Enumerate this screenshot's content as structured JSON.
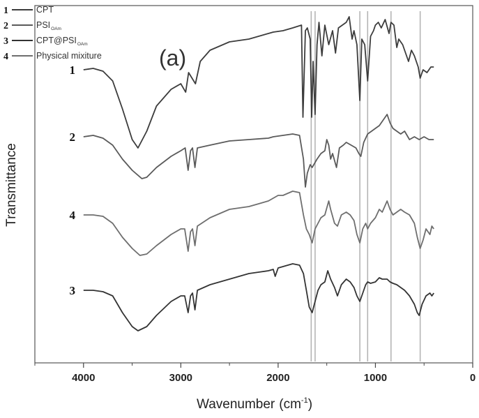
{
  "chart_data": {
    "type": "line",
    "panel_label": "(a)",
    "xlabel": "Wavenumber",
    "xlabel_unit": "(cm",
    "xlabel_unit_exp": "-1",
    "xlabel_unit_close": ")",
    "ylabel": "Transmittance",
    "xlim": [
      4500,
      0
    ],
    "x_reversed": true,
    "x_ticks": [
      4000,
      3000,
      2000,
      1000,
      0
    ],
    "x_tick_labels": [
      "4000",
      "3000",
      "2000",
      "1000",
      "0"
    ],
    "y_axis_values_shown": false,
    "grid": false,
    "legend_position": "top-left",
    "legend": [
      {
        "number": "1",
        "label": "CPT",
        "sub": "",
        "suffix": ""
      },
      {
        "number": "2",
        "label": "PSI",
        "sub": "OAm",
        "suffix": ""
      },
      {
        "number": "3",
        "label": "CPT@PSI",
        "sub": "OAm",
        "suffix": ""
      },
      {
        "number": "4",
        "label": "Physical mixiture",
        "sub": "",
        "suffix": ""
      }
    ],
    "vertical_reference_lines": [
      1660,
      1620,
      1160,
      1080,
      840,
      540
    ],
    "series": [
      {
        "curve_label": "1",
        "color": "#3c3c3c",
        "points": [
          [
            4000,
            0.77
          ],
          [
            3900,
            0.775
          ],
          [
            3800,
            0.765
          ],
          [
            3700,
            0.73
          ],
          [
            3600,
            0.63
          ],
          [
            3500,
            0.52
          ],
          [
            3440,
            0.49
          ],
          [
            3350,
            0.55
          ],
          [
            3250,
            0.64
          ],
          [
            3100,
            0.7
          ],
          [
            3000,
            0.72
          ],
          [
            2950,
            0.69
          ],
          [
            2920,
            0.76
          ],
          [
            2850,
            0.72
          ],
          [
            2800,
            0.8
          ],
          [
            2700,
            0.84
          ],
          [
            2500,
            0.87
          ],
          [
            2300,
            0.88
          ],
          [
            2100,
            0.9
          ],
          [
            2050,
            0.905
          ],
          [
            1950,
            0.91
          ],
          [
            1850,
            0.92
          ],
          [
            1760,
            0.93
          ],
          [
            1745,
            0.6
          ],
          [
            1720,
            0.91
          ],
          [
            1700,
            0.92
          ],
          [
            1670,
            0.88
          ],
          [
            1655,
            0.6
          ],
          [
            1640,
            0.8
          ],
          [
            1620,
            0.61
          ],
          [
            1600,
            0.86
          ],
          [
            1580,
            0.94
          ],
          [
            1550,
            0.82
          ],
          [
            1520,
            0.93
          ],
          [
            1480,
            0.86
          ],
          [
            1440,
            0.91
          ],
          [
            1410,
            0.83
          ],
          [
            1380,
            0.92
          ],
          [
            1340,
            0.93
          ],
          [
            1300,
            0.94
          ],
          [
            1270,
            0.96
          ],
          [
            1240,
            0.88
          ],
          [
            1220,
            0.91
          ],
          [
            1190,
            0.86
          ],
          [
            1160,
            0.66
          ],
          [
            1140,
            0.88
          ],
          [
            1110,
            0.86
          ],
          [
            1080,
            0.73
          ],
          [
            1050,
            0.89
          ],
          [
            1020,
            0.91
          ],
          [
            1000,
            0.93
          ],
          [
            970,
            0.94
          ],
          [
            940,
            0.92
          ],
          [
            900,
            0.95
          ],
          [
            860,
            0.9
          ],
          [
            840,
            0.94
          ],
          [
            810,
            0.93
          ],
          [
            780,
            0.85
          ],
          [
            760,
            0.88
          ],
          [
            720,
            0.86
          ],
          [
            690,
            0.83
          ],
          [
            660,
            0.8
          ],
          [
            630,
            0.84
          ],
          [
            600,
            0.82
          ],
          [
            560,
            0.78
          ],
          [
            540,
            0.74
          ],
          [
            510,
            0.77
          ],
          [
            470,
            0.76
          ],
          [
            430,
            0.78
          ],
          [
            400,
            0.78
          ]
        ]
      },
      {
        "curve_label": "2",
        "color": "#5a5a5a",
        "points": [
          [
            4000,
            0.53
          ],
          [
            3900,
            0.535
          ],
          [
            3800,
            0.525
          ],
          [
            3700,
            0.5
          ],
          [
            3600,
            0.45
          ],
          [
            3500,
            0.41
          ],
          [
            3400,
            0.38
          ],
          [
            3350,
            0.385
          ],
          [
            3250,
            0.42
          ],
          [
            3100,
            0.46
          ],
          [
            3000,
            0.48
          ],
          [
            2955,
            0.49
          ],
          [
            2925,
            0.41
          ],
          [
            2900,
            0.48
          ],
          [
            2880,
            0.49
          ],
          [
            2855,
            0.42
          ],
          [
            2830,
            0.49
          ],
          [
            2700,
            0.5
          ],
          [
            2500,
            0.515
          ],
          [
            2300,
            0.52
          ],
          [
            2100,
            0.525
          ],
          [
            2050,
            0.53
          ],
          [
            1950,
            0.535
          ],
          [
            1850,
            0.54
          ],
          [
            1780,
            0.535
          ],
          [
            1740,
            0.45
          ],
          [
            1720,
            0.35
          ],
          [
            1700,
            0.4
          ],
          [
            1670,
            0.43
          ],
          [
            1650,
            0.42
          ],
          [
            1600,
            0.45
          ],
          [
            1560,
            0.47
          ],
          [
            1520,
            0.48
          ],
          [
            1500,
            0.52
          ],
          [
            1480,
            0.5
          ],
          [
            1460,
            0.45
          ],
          [
            1440,
            0.47
          ],
          [
            1400,
            0.42
          ],
          [
            1370,
            0.49
          ],
          [
            1330,
            0.5
          ],
          [
            1300,
            0.51
          ],
          [
            1250,
            0.5
          ],
          [
            1200,
            0.49
          ],
          [
            1170,
            0.47
          ],
          [
            1150,
            0.46
          ],
          [
            1120,
            0.51
          ],
          [
            1080,
            0.54
          ],
          [
            1040,
            0.55
          ],
          [
            1000,
            0.56
          ],
          [
            960,
            0.57
          ],
          [
            920,
            0.59
          ],
          [
            880,
            0.61
          ],
          [
            850,
            0.58
          ],
          [
            820,
            0.56
          ],
          [
            780,
            0.55
          ],
          [
            740,
            0.54
          ],
          [
            700,
            0.55
          ],
          [
            650,
            0.52
          ],
          [
            600,
            0.53
          ],
          [
            550,
            0.52
          ],
          [
            500,
            0.53
          ],
          [
            450,
            0.52
          ],
          [
            400,
            0.52
          ]
        ]
      },
      {
        "curve_label": "4",
        "color": "#6e6e6e",
        "points": [
          [
            4000,
            0.25
          ],
          [
            3900,
            0.25
          ],
          [
            3800,
            0.245
          ],
          [
            3700,
            0.22
          ],
          [
            3600,
            0.17
          ],
          [
            3500,
            0.13
          ],
          [
            3420,
            0.105
          ],
          [
            3350,
            0.11
          ],
          [
            3250,
            0.14
          ],
          [
            3100,
            0.18
          ],
          [
            3000,
            0.2
          ],
          [
            2960,
            0.2
          ],
          [
            2925,
            0.12
          ],
          [
            2900,
            0.19
          ],
          [
            2880,
            0.2
          ],
          [
            2855,
            0.14
          ],
          [
            2830,
            0.21
          ],
          [
            2700,
            0.24
          ],
          [
            2500,
            0.27
          ],
          [
            2300,
            0.28
          ],
          [
            2200,
            0.29
          ],
          [
            2100,
            0.3
          ],
          [
            2050,
            0.31
          ],
          [
            2000,
            0.32
          ],
          [
            1950,
            0.32
          ],
          [
            1850,
            0.335
          ],
          [
            1780,
            0.33
          ],
          [
            1740,
            0.25
          ],
          [
            1710,
            0.2
          ],
          [
            1680,
            0.18
          ],
          [
            1650,
            0.15
          ],
          [
            1620,
            0.2
          ],
          [
            1590,
            0.22
          ],
          [
            1560,
            0.24
          ],
          [
            1520,
            0.25
          ],
          [
            1480,
            0.3
          ],
          [
            1460,
            0.27
          ],
          [
            1420,
            0.22
          ],
          [
            1390,
            0.21
          ],
          [
            1350,
            0.25
          ],
          [
            1300,
            0.26
          ],
          [
            1260,
            0.25
          ],
          [
            1220,
            0.23
          ],
          [
            1190,
            0.18
          ],
          [
            1160,
            0.15
          ],
          [
            1130,
            0.2
          ],
          [
            1100,
            0.22
          ],
          [
            1080,
            0.2
          ],
          [
            1050,
            0.22
          ],
          [
            1000,
            0.24
          ],
          [
            960,
            0.27
          ],
          [
            930,
            0.26
          ],
          [
            880,
            0.3
          ],
          [
            850,
            0.27
          ],
          [
            820,
            0.25
          ],
          [
            780,
            0.26
          ],
          [
            740,
            0.27
          ],
          [
            700,
            0.26
          ],
          [
            650,
            0.25
          ],
          [
            600,
            0.22
          ],
          [
            570,
            0.17
          ],
          [
            540,
            0.13
          ],
          [
            510,
            0.16
          ],
          [
            480,
            0.2
          ],
          [
            440,
            0.18
          ],
          [
            420,
            0.21
          ],
          [
            400,
            0.2
          ]
        ]
      },
      {
        "curve_label": "3",
        "color": "#333333",
        "points": [
          [
            4000,
            -0.02
          ],
          [
            3900,
            -0.02
          ],
          [
            3800,
            -0.025
          ],
          [
            3700,
            -0.04
          ],
          [
            3600,
            -0.1
          ],
          [
            3500,
            -0.15
          ],
          [
            3440,
            -0.165
          ],
          [
            3350,
            -0.15
          ],
          [
            3250,
            -0.11
          ],
          [
            3100,
            -0.06
          ],
          [
            3000,
            -0.04
          ],
          [
            2960,
            -0.04
          ],
          [
            2925,
            -0.1
          ],
          [
            2900,
            -0.04
          ],
          [
            2880,
            -0.03
          ],
          [
            2855,
            -0.09
          ],
          [
            2830,
            -0.02
          ],
          [
            2700,
            0.0
          ],
          [
            2500,
            0.02
          ],
          [
            2300,
            0.04
          ],
          [
            2200,
            0.045
          ],
          [
            2100,
            0.05
          ],
          [
            2050,
            0.055
          ],
          [
            2030,
            0.03
          ],
          [
            2000,
            0.06
          ],
          [
            1950,
            0.065
          ],
          [
            1850,
            0.075
          ],
          [
            1780,
            0.07
          ],
          [
            1740,
            0.04
          ],
          [
            1710,
            -0.02
          ],
          [
            1680,
            -0.08
          ],
          [
            1650,
            -0.1
          ],
          [
            1620,
            -0.06
          ],
          [
            1590,
            -0.02
          ],
          [
            1560,
            0.0
          ],
          [
            1520,
            0.01
          ],
          [
            1490,
            0.05
          ],
          [
            1460,
            0.02
          ],
          [
            1420,
            -0.01
          ],
          [
            1390,
            -0.04
          ],
          [
            1350,
            0.0
          ],
          [
            1300,
            0.02
          ],
          [
            1260,
            0.01
          ],
          [
            1220,
            -0.01
          ],
          [
            1190,
            -0.04
          ],
          [
            1160,
            -0.06
          ],
          [
            1130,
            -0.03
          ],
          [
            1100,
            0.0
          ],
          [
            1080,
            0.01
          ],
          [
            1050,
            0.005
          ],
          [
            1000,
            0.01
          ],
          [
            960,
            0.025
          ],
          [
            930,
            0.02
          ],
          [
            880,
            0.02
          ],
          [
            850,
            0.01
          ],
          [
            820,
            0.005
          ],
          [
            780,
            0.0
          ],
          [
            740,
            -0.01
          ],
          [
            700,
            -0.02
          ],
          [
            650,
            -0.04
          ],
          [
            600,
            -0.07
          ],
          [
            570,
            -0.1
          ],
          [
            550,
            -0.11
          ],
          [
            520,
            -0.07
          ],
          [
            480,
            -0.04
          ],
          [
            440,
            -0.03
          ],
          [
            420,
            -0.04
          ],
          [
            400,
            -0.03
          ]
        ]
      }
    ]
  }
}
